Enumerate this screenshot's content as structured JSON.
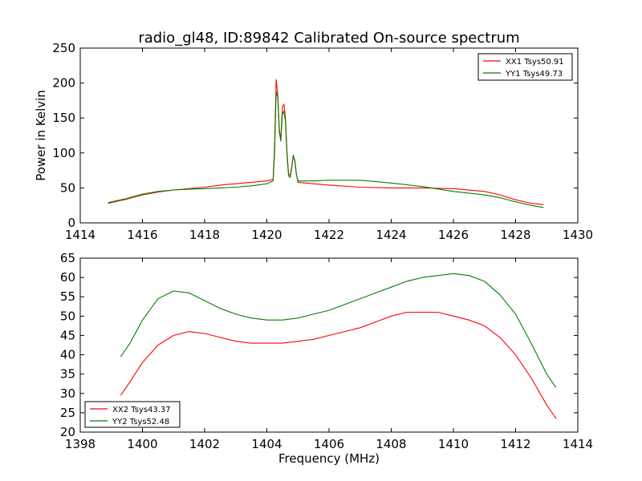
{
  "figure": {
    "title": "radio_gl48, ID:89842 Calibrated On-source spectrum",
    "ylabel": "Power in Kelvin",
    "xlabel": "Frequency (MHz)"
  },
  "chart_data": [
    {
      "type": "line",
      "title": "radio_gl48, ID:89842 Calibrated On-source spectrum",
      "xlabel": "",
      "ylabel": "Power in Kelvin",
      "xlim": [
        1414,
        1430
      ],
      "ylim": [
        0,
        250
      ],
      "xticks": [
        1414,
        1416,
        1418,
        1420,
        1422,
        1424,
        1426,
        1428,
        1430
      ],
      "yticks": [
        0,
        50,
        100,
        150,
        200,
        250
      ],
      "legend_position": "top-right",
      "grid": false,
      "series": [
        {
          "name": "XX1 Tsys50.91",
          "color": "#ff0000",
          "points": [
            [
              1414.9,
              28
            ],
            [
              1415.5,
              34
            ],
            [
              1416.0,
              40
            ],
            [
              1416.5,
              44
            ],
            [
              1417.0,
              47
            ],
            [
              1417.5,
              49
            ],
            [
              1418.0,
              51
            ],
            [
              1418.5,
              54
            ],
            [
              1419.0,
              56
            ],
            [
              1419.5,
              58
            ],
            [
              1420.0,
              60
            ],
            [
              1420.2,
              62
            ],
            [
              1420.25,
              110
            ],
            [
              1420.3,
              205
            ],
            [
              1420.35,
              185
            ],
            [
              1420.4,
              130
            ],
            [
              1420.45,
              118
            ],
            [
              1420.5,
              165
            ],
            [
              1420.55,
              170
            ],
            [
              1420.6,
              150
            ],
            [
              1420.65,
              100
            ],
            [
              1420.7,
              70
            ],
            [
              1420.75,
              68
            ],
            [
              1420.8,
              80
            ],
            [
              1420.85,
              95
            ],
            [
              1420.9,
              90
            ],
            [
              1420.95,
              70
            ],
            [
              1421.0,
              58
            ],
            [
              1421.5,
              56
            ],
            [
              1422.0,
              54
            ],
            [
              1423.0,
              51
            ],
            [
              1424.0,
              50
            ],
            [
              1425.0,
              50
            ],
            [
              1426.0,
              49
            ],
            [
              1427.0,
              45
            ],
            [
              1427.5,
              40
            ],
            [
              1428.0,
              33
            ],
            [
              1428.5,
              28
            ],
            [
              1428.9,
              26
            ]
          ]
        },
        {
          "name": "YY1 Tsys49.73",
          "color": "#008000",
          "points": [
            [
              1414.9,
              29
            ],
            [
              1415.5,
              35
            ],
            [
              1416.0,
              41
            ],
            [
              1416.5,
              45
            ],
            [
              1417.0,
              47
            ],
            [
              1417.5,
              48
            ],
            [
              1418.0,
              49
            ],
            [
              1418.5,
              50
            ],
            [
              1419.0,
              51
            ],
            [
              1419.5,
              53
            ],
            [
              1420.0,
              56
            ],
            [
              1420.2,
              60
            ],
            [
              1420.25,
              100
            ],
            [
              1420.3,
              188
            ],
            [
              1420.35,
              180
            ],
            [
              1420.4,
              135
            ],
            [
              1420.45,
              117
            ],
            [
              1420.5,
              155
            ],
            [
              1420.55,
              160
            ],
            [
              1420.6,
              145
            ],
            [
              1420.65,
              95
            ],
            [
              1420.7,
              67
            ],
            [
              1420.75,
              65
            ],
            [
              1420.8,
              78
            ],
            [
              1420.85,
              97
            ],
            [
              1420.9,
              88
            ],
            [
              1420.95,
              70
            ],
            [
              1421.0,
              60
            ],
            [
              1421.5,
              60
            ],
            [
              1422.0,
              61
            ],
            [
              1423.0,
              61
            ],
            [
              1424.0,
              57
            ],
            [
              1425.0,
              52
            ],
            [
              1426.0,
              45
            ],
            [
              1427.0,
              40
            ],
            [
              1427.5,
              36
            ],
            [
              1428.0,
              30
            ],
            [
              1428.5,
              25
            ],
            [
              1428.9,
              22
            ]
          ]
        }
      ]
    },
    {
      "type": "line",
      "title": "",
      "xlabel": "Frequency (MHz)",
      "ylabel": "",
      "xlim": [
        1398,
        1414
      ],
      "ylim": [
        20,
        65
      ],
      "xticks": [
        1398,
        1400,
        1402,
        1404,
        1406,
        1408,
        1410,
        1412,
        1414
      ],
      "yticks": [
        20,
        25,
        30,
        35,
        40,
        45,
        50,
        55,
        60,
        65
      ],
      "legend_position": "bottom-left",
      "grid": false,
      "series": [
        {
          "name": "XX2 Tsys43.37",
          "color": "#ff0000",
          "points": [
            [
              1399.3,
              29.5
            ],
            [
              1399.6,
              33
            ],
            [
              1400.0,
              38
            ],
            [
              1400.5,
              42.5
            ],
            [
              1401.0,
              45
            ],
            [
              1401.5,
              46
            ],
            [
              1402.0,
              45.5
            ],
            [
              1402.5,
              44.5
            ],
            [
              1403.0,
              43.5
            ],
            [
              1403.5,
              43
            ],
            [
              1404.0,
              43
            ],
            [
              1404.5,
              43
            ],
            [
              1405.0,
              43.5
            ],
            [
              1405.5,
              44
            ],
            [
              1406.0,
              45
            ],
            [
              1406.5,
              46
            ],
            [
              1407.0,
              47
            ],
            [
              1407.5,
              48.5
            ],
            [
              1408.0,
              50
            ],
            [
              1408.5,
              51
            ],
            [
              1409.0,
              51
            ],
            [
              1409.5,
              51
            ],
            [
              1410.0,
              50
            ],
            [
              1410.5,
              49
            ],
            [
              1411.0,
              47.5
            ],
            [
              1411.5,
              44.5
            ],
            [
              1412.0,
              40
            ],
            [
              1412.5,
              34
            ],
            [
              1413.0,
              27
            ],
            [
              1413.3,
              23.5
            ]
          ]
        },
        {
          "name": "YY2 Tsys52.48",
          "color": "#008000",
          "points": [
            [
              1399.3,
              39.5
            ],
            [
              1399.6,
              43
            ],
            [
              1400.0,
              49
            ],
            [
              1400.5,
              54.5
            ],
            [
              1401.0,
              56.5
            ],
            [
              1401.5,
              56
            ],
            [
              1402.0,
              54
            ],
            [
              1402.5,
              52
            ],
            [
              1403.0,
              50.5
            ],
            [
              1403.5,
              49.5
            ],
            [
              1404.0,
              49
            ],
            [
              1404.5,
              49
            ],
            [
              1405.0,
              49.5
            ],
            [
              1405.5,
              50.5
            ],
            [
              1406.0,
              51.5
            ],
            [
              1406.5,
              53
            ],
            [
              1407.0,
              54.5
            ],
            [
              1407.5,
              56
            ],
            [
              1408.0,
              57.5
            ],
            [
              1408.5,
              59
            ],
            [
              1409.0,
              60
            ],
            [
              1409.5,
              60.5
            ],
            [
              1410.0,
              61
            ],
            [
              1410.5,
              60.5
            ],
            [
              1411.0,
              59
            ],
            [
              1411.5,
              55.5
            ],
            [
              1412.0,
              50.5
            ],
            [
              1412.5,
              43
            ],
            [
              1413.0,
              35
            ],
            [
              1413.3,
              31.5
            ]
          ]
        }
      ]
    }
  ]
}
